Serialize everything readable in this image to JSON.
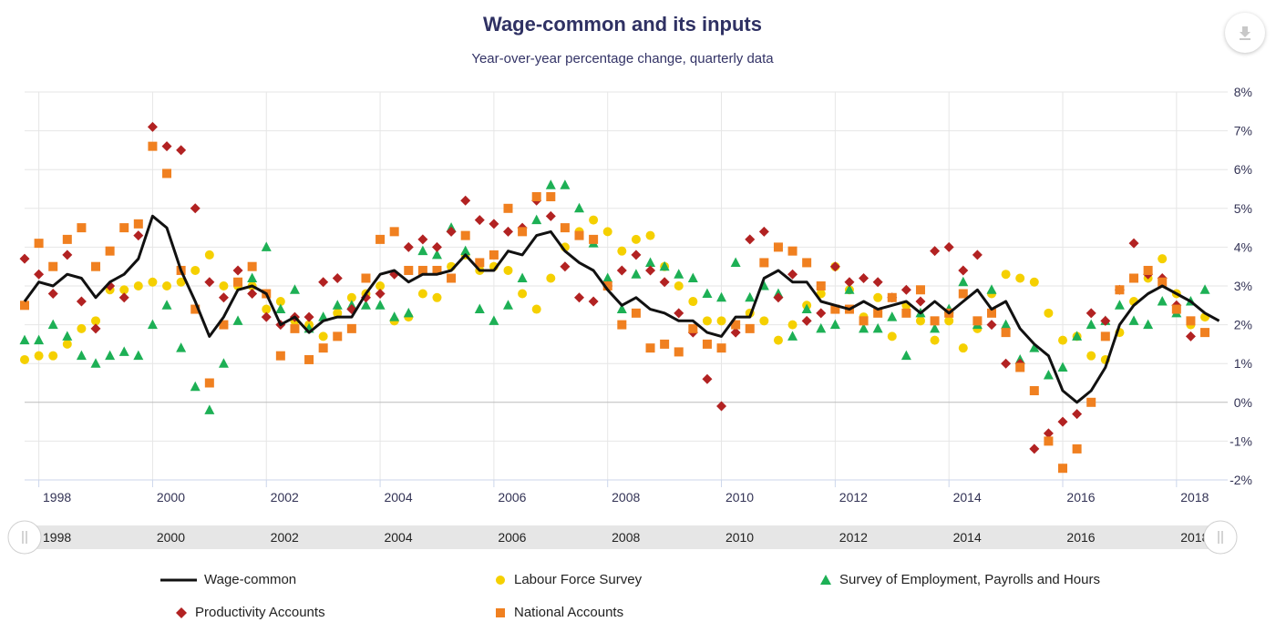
{
  "title": "Wage-common and its inputs",
  "subtitle": "Year-over-year percentage change, quarterly data",
  "download_icon": "download-icon",
  "colors": {
    "wage_common": "#111111",
    "lfs": "#f5d000",
    "seph": "#1db055",
    "productivity": "#b22222",
    "national": "#f08020",
    "grid": "#e6e6e6",
    "axis_text": "#333355",
    "navigator_bg": "#e6e6e6"
  },
  "navigator": {
    "labels": [
      "1998",
      "2000",
      "2002",
      "2004",
      "2006",
      "2008",
      "2010",
      "2012",
      "2014",
      "2016",
      "2018"
    ],
    "left_handle_icon": "grip-handle-icon",
    "right_handle_icon": "grip-handle-icon"
  },
  "legend": [
    {
      "name": "Wage-common",
      "marker": "line"
    },
    {
      "name": "Labour Force Survey",
      "marker": "circle"
    },
    {
      "name": "Survey of Employment, Payrolls and Hours",
      "marker": "triangle"
    },
    {
      "name": "Productivity Accounts",
      "marker": "diamond"
    },
    {
      "name": "National Accounts",
      "marker": "square"
    }
  ],
  "chart_data": {
    "type": "line+scatter",
    "title": "Wage-common and its inputs",
    "subtitle": "Year-over-year percentage change, quarterly data",
    "xlabel": "",
    "ylabel": "",
    "x_start": 1997.75,
    "x_step": 0.25,
    "xlim": [
      1997.75,
      2018.9
    ],
    "ylim": [
      -2,
      8
    ],
    "y_ticks": [
      -2,
      -1,
      0,
      1,
      2,
      3,
      4,
      5,
      6,
      7,
      8
    ],
    "y_tick_labels": [
      "-2%",
      "-1%",
      "0%",
      "1%",
      "2%",
      "3%",
      "4%",
      "5%",
      "6%",
      "7%",
      "8%"
    ],
    "x_ticks": [
      1998,
      2000,
      2002,
      2004,
      2006,
      2008,
      2010,
      2012,
      2014,
      2016,
      2018
    ],
    "x_tick_labels": [
      "1998",
      "2000",
      "2002",
      "2004",
      "2006",
      "2008",
      "2010",
      "2012",
      "2014",
      "2016",
      "2018"
    ],
    "series": [
      {
        "name": "Wage-common",
        "type": "line",
        "values": [
          2.6,
          3.1,
          3.0,
          3.3,
          3.2,
          2.7,
          3.1,
          3.3,
          3.7,
          4.8,
          4.5,
          3.4,
          2.6,
          1.7,
          2.2,
          2.9,
          3.0,
          2.8,
          2.0,
          2.2,
          1.8,
          2.1,
          2.2,
          2.2,
          2.8,
          3.3,
          3.4,
          3.1,
          3.3,
          3.3,
          3.4,
          3.8,
          3.4,
          3.4,
          3.9,
          3.8,
          4.3,
          4.4,
          3.9,
          3.6,
          3.4,
          2.9,
          2.5,
          2.7,
          2.4,
          2.3,
          2.1,
          2.1,
          1.8,
          1.7,
          2.2,
          2.2,
          3.2,
          3.4,
          3.1,
          3.1,
          2.6,
          2.5,
          2.4,
          2.6,
          2.4,
          2.5,
          2.6,
          2.3,
          2.6,
          2.3,
          2.6,
          2.9,
          2.4,
          2.6,
          1.9,
          1.5,
          1.2,
          0.3,
          0.0,
          0.3,
          0.9,
          2.0,
          2.5,
          2.8,
          3.0,
          2.8,
          2.6,
          2.3,
          2.1
        ]
      },
      {
        "name": "Labour Force Survey",
        "type": "scatter",
        "marker": "circle",
        "values": [
          1.1,
          1.2,
          1.2,
          1.5,
          1.9,
          2.1,
          2.9,
          2.9,
          3.0,
          3.1,
          3.0,
          3.1,
          3.4,
          3.8,
          3.0,
          3.0,
          3.0,
          2.4,
          2.6,
          2.1,
          2.0,
          1.7,
          2.3,
          2.7,
          2.8,
          3.0,
          2.1,
          2.2,
          2.8,
          2.7,
          3.5,
          3.8,
          3.4,
          3.5,
          3.4,
          2.8,
          2.4,
          3.2,
          4.0,
          4.4,
          4.7,
          4.4,
          3.9,
          4.2,
          4.3,
          3.5,
          3.0,
          2.6,
          2.1,
          2.1,
          2.0,
          2.3,
          2.1,
          1.6,
          2.0,
          2.5,
          2.8,
          3.5,
          2.9,
          2.2,
          2.7,
          1.7,
          2.5,
          2.1,
          1.6,
          2.1,
          1.4,
          1.9,
          2.8,
          3.3,
          3.2,
          3.1,
          2.3,
          1.6,
          1.7,
          1.2,
          1.1,
          1.8,
          2.6,
          3.2,
          3.7,
          2.8,
          2.0,
          2.2
        ]
      },
      {
        "name": "Survey of Employment, Payrolls and Hours",
        "type": "scatter",
        "marker": "triangle",
        "values": [
          1.6,
          1.6,
          2.0,
          1.7,
          1.2,
          1.0,
          1.2,
          1.3,
          1.2,
          2.0,
          2.5,
          1.4,
          0.4,
          -0.2,
          1.0,
          2.1,
          3.2,
          4.0,
          2.4,
          2.9,
          1.9,
          2.2,
          2.5,
          2.5,
          2.5,
          2.5,
          2.2,
          2.3,
          3.9,
          3.8,
          4.5,
          3.9,
          2.4,
          2.1,
          2.5,
          3.2,
          4.7,
          5.6,
          5.6,
          5.0,
          4.1,
          3.2,
          2.4,
          3.3,
          3.6,
          3.5,
          3.3,
          3.2,
          2.8,
          2.7,
          3.6,
          2.7,
          3.0,
          2.8,
          1.7,
          2.4,
          1.9,
          2.0,
          2.9,
          1.9,
          1.9,
          2.2,
          1.2,
          2.3,
          1.9,
          2.4,
          3.1,
          2.0,
          2.9,
          2.0,
          1.1,
          1.4,
          0.7,
          0.9,
          1.7,
          2.0,
          2.1,
          2.5,
          2.1,
          2.0,
          2.6,
          2.3,
          2.6,
          2.9
        ]
      },
      {
        "name": "Productivity Accounts",
        "type": "scatter",
        "marker": "diamond",
        "values": [
          3.7,
          3.3,
          2.8,
          3.8,
          2.6,
          1.9,
          3.0,
          2.7,
          4.3,
          7.1,
          6.6,
          6.5,
          5.0,
          3.1,
          2.7,
          3.4,
          2.8,
          2.2,
          2.0,
          2.2,
          2.2,
          3.1,
          3.2,
          2.4,
          2.7,
          2.8,
          3.3,
          4.0,
          4.2,
          4.0,
          4.4,
          5.2,
          4.7,
          4.6,
          4.4,
          4.5,
          5.2,
          4.8,
          3.5,
          2.7,
          2.6,
          3.0,
          3.4,
          3.8,
          3.4,
          3.1,
          2.3,
          1.8,
          0.6,
          -0.1,
          1.8,
          4.2,
          4.4,
          2.7,
          3.3,
          2.1,
          2.3,
          3.5,
          3.1,
          3.2,
          3.1,
          2.7,
          2.9,
          2.6,
          3.9,
          4.0,
          3.4,
          3.8,
          2.0,
          1.0,
          1.0,
          -1.2,
          -0.8,
          -0.5,
          -0.3,
          2.3,
          2.1,
          2.9,
          4.1,
          3.3,
          3.2,
          2.5,
          1.7
        ]
      },
      {
        "name": "National Accounts",
        "type": "scatter",
        "marker": "square",
        "values": [
          2.5,
          4.1,
          3.5,
          4.2,
          4.5,
          3.5,
          3.9,
          4.5,
          4.6,
          6.6,
          5.9,
          3.4,
          2.4,
          0.5,
          2.0,
          3.1,
          3.5,
          2.8,
          1.2,
          1.9,
          1.1,
          1.4,
          1.7,
          1.9,
          3.2,
          4.2,
          4.4,
          3.4,
          3.4,
          3.4,
          3.2,
          4.3,
          3.6,
          3.8,
          5.0,
          4.4,
          5.3,
          5.3,
          4.5,
          4.3,
          4.2,
          3.0,
          2.0,
          2.3,
          1.4,
          1.5,
          1.3,
          1.9,
          1.5,
          1.4,
          2.0,
          1.9,
          3.6,
          4.0,
          3.9,
          3.6,
          3.0,
          2.4,
          2.4,
          2.1,
          2.3,
          2.7,
          2.3,
          2.9,
          2.1,
          2.3,
          2.8,
          2.1,
          2.3,
          1.8,
          0.9,
          0.3,
          -1.0,
          -1.7,
          -1.2,
          0.0,
          1.7,
          2.9,
          3.2,
          3.4,
          3.1,
          2.4,
          2.1,
          1.8
        ]
      }
    ]
  }
}
